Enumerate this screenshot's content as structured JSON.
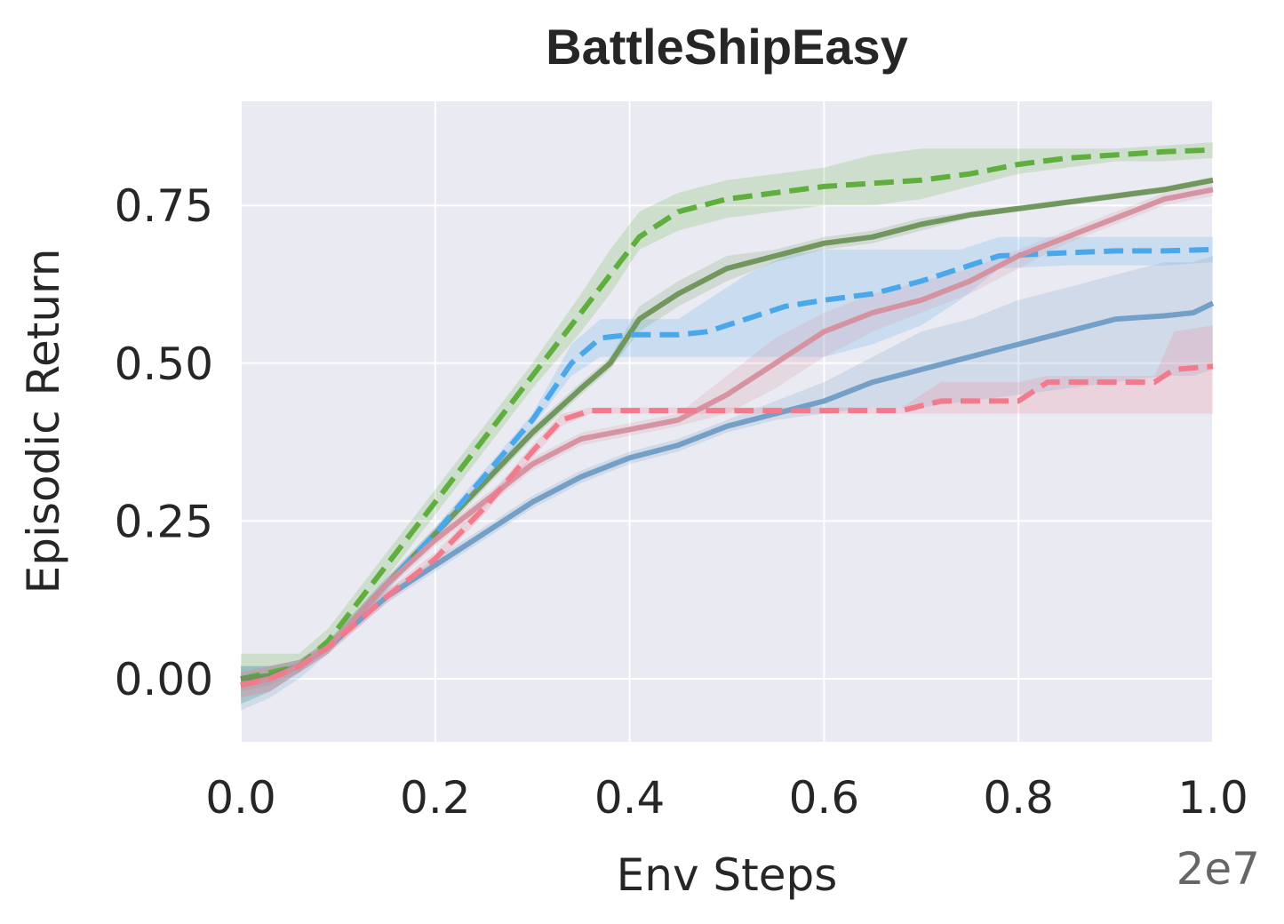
{
  "chart_data": {
    "type": "line",
    "title": "BattleShipEasy",
    "xlabel": "Env Steps",
    "ylabel": "Episodic Return",
    "x_offset_text": "2e7",
    "xlim": [
      0.0,
      1.0
    ],
    "ylim": [
      -0.1,
      0.915
    ],
    "x_ticks": [
      0.0,
      0.2,
      0.4,
      0.6,
      0.8,
      1.0
    ],
    "x_tick_labels": [
      "0.0",
      "0.2",
      "0.4",
      "0.6",
      "0.8",
      "1.0"
    ],
    "y_ticks": [
      0.0,
      0.25,
      0.5,
      0.75
    ],
    "y_tick_labels": [
      "0.00",
      "0.25",
      "0.50",
      "0.75"
    ],
    "grid": true,
    "background": "#eaeaf2",
    "series": [
      {
        "color": "#5fae3e",
        "dashed": true,
        "x": [
          0,
          0.03,
          0.06,
          0.09,
          0.12,
          0.15,
          0.2,
          0.25,
          0.3,
          0.35,
          0.38,
          0.41,
          0.45,
          0.5,
          0.55,
          0.6,
          0.65,
          0.7,
          0.75,
          0.8,
          0.85,
          0.9,
          0.95,
          1.0
        ],
        "y": [
          0.0,
          0.01,
          0.02,
          0.06,
          0.12,
          0.18,
          0.28,
          0.38,
          0.48,
          0.58,
          0.64,
          0.7,
          0.74,
          0.76,
          0.77,
          0.78,
          0.785,
          0.79,
          0.8,
          0.815,
          0.825,
          0.83,
          0.835,
          0.838
        ],
        "lo": [
          -0.04,
          -0.02,
          0.01,
          0.05,
          0.1,
          0.16,
          0.26,
          0.36,
          0.46,
          0.55,
          0.61,
          0.68,
          0.71,
          0.73,
          0.74,
          0.75,
          0.75,
          0.76,
          0.78,
          0.8,
          0.81,
          0.82,
          0.82,
          0.825
        ],
        "hi": [
          0.04,
          0.04,
          0.04,
          0.08,
          0.14,
          0.2,
          0.3,
          0.4,
          0.5,
          0.61,
          0.68,
          0.74,
          0.77,
          0.79,
          0.8,
          0.81,
          0.83,
          0.84,
          0.84,
          0.84,
          0.84,
          0.84,
          0.845,
          0.85
        ]
      },
      {
        "color": "#6b9459",
        "dashed": false,
        "x": [
          0,
          0.03,
          0.06,
          0.09,
          0.12,
          0.15,
          0.2,
          0.25,
          0.3,
          0.35,
          0.38,
          0.41,
          0.45,
          0.5,
          0.55,
          0.6,
          0.65,
          0.7,
          0.75,
          0.8,
          0.85,
          0.9,
          0.95,
          1.0
        ],
        "y": [
          0.0,
          0.005,
          0.02,
          0.05,
          0.1,
          0.15,
          0.23,
          0.31,
          0.39,
          0.46,
          0.5,
          0.57,
          0.61,
          0.65,
          0.67,
          0.69,
          0.7,
          0.72,
          0.735,
          0.745,
          0.755,
          0.765,
          0.775,
          0.79
        ],
        "lo": [
          -0.02,
          -0.01,
          0.01,
          0.04,
          0.09,
          0.14,
          0.22,
          0.3,
          0.38,
          0.45,
          0.49,
          0.55,
          0.59,
          0.63,
          0.66,
          0.68,
          0.69,
          0.71,
          0.73,
          0.74,
          0.75,
          0.76,
          0.77,
          0.785
        ],
        "hi": [
          0.02,
          0.02,
          0.03,
          0.06,
          0.11,
          0.16,
          0.24,
          0.32,
          0.4,
          0.47,
          0.51,
          0.59,
          0.63,
          0.67,
          0.68,
          0.7,
          0.71,
          0.73,
          0.74,
          0.75,
          0.76,
          0.77,
          0.78,
          0.795
        ]
      },
      {
        "color": "#4aa8ea",
        "dashed": true,
        "x": [
          0,
          0.03,
          0.06,
          0.09,
          0.12,
          0.15,
          0.2,
          0.25,
          0.3,
          0.34,
          0.37,
          0.4,
          0.45,
          0.48,
          0.52,
          0.56,
          0.6,
          0.65,
          0.7,
          0.74,
          0.78,
          0.85,
          0.9,
          0.95,
          1.0
        ],
        "y": [
          -0.01,
          0.0,
          0.02,
          0.05,
          0.1,
          0.15,
          0.23,
          0.32,
          0.41,
          0.5,
          0.54,
          0.545,
          0.545,
          0.55,
          0.57,
          0.59,
          0.6,
          0.61,
          0.63,
          0.65,
          0.67,
          0.675,
          0.678,
          0.678,
          0.68
        ],
        "lo": [
          -0.04,
          -0.02,
          0.01,
          0.04,
          0.09,
          0.14,
          0.22,
          0.31,
          0.4,
          0.48,
          0.51,
          0.51,
          0.51,
          0.51,
          0.51,
          0.51,
          0.51,
          0.53,
          0.56,
          0.6,
          0.65,
          0.655,
          0.655,
          0.655,
          0.66
        ],
        "hi": [
          0.02,
          0.02,
          0.03,
          0.06,
          0.11,
          0.16,
          0.24,
          0.33,
          0.42,
          0.53,
          0.57,
          0.57,
          0.57,
          0.6,
          0.64,
          0.67,
          0.68,
          0.68,
          0.68,
          0.68,
          0.7,
          0.7,
          0.7,
          0.7,
          0.7
        ]
      },
      {
        "color": "#6f9cc4",
        "dashed": false,
        "x": [
          0,
          0.03,
          0.06,
          0.09,
          0.12,
          0.15,
          0.2,
          0.25,
          0.3,
          0.35,
          0.4,
          0.45,
          0.5,
          0.55,
          0.6,
          0.65,
          0.7,
          0.75,
          0.8,
          0.85,
          0.9,
          0.95,
          0.98,
          1.0
        ],
        "y": [
          -0.01,
          0.0,
          0.02,
          0.05,
          0.09,
          0.13,
          0.18,
          0.23,
          0.28,
          0.32,
          0.35,
          0.37,
          0.4,
          0.42,
          0.44,
          0.47,
          0.49,
          0.51,
          0.53,
          0.55,
          0.57,
          0.575,
          0.58,
          0.595
        ],
        "lo": [
          -0.05,
          -0.03,
          0.0,
          0.04,
          0.08,
          0.12,
          0.17,
          0.22,
          0.27,
          0.31,
          0.34,
          0.36,
          0.39,
          0.41,
          0.42,
          0.43,
          0.43,
          0.44,
          0.45,
          0.46,
          0.47,
          0.48,
          0.48,
          0.49
        ],
        "hi": [
          0.02,
          0.02,
          0.03,
          0.06,
          0.1,
          0.14,
          0.19,
          0.24,
          0.29,
          0.33,
          0.36,
          0.38,
          0.41,
          0.44,
          0.47,
          0.51,
          0.55,
          0.57,
          0.6,
          0.62,
          0.64,
          0.66,
          0.66,
          0.67
        ]
      },
      {
        "color": "#d58f9e",
        "dashed": false,
        "x": [
          0,
          0.03,
          0.06,
          0.09,
          0.12,
          0.15,
          0.2,
          0.25,
          0.3,
          0.35,
          0.4,
          0.45,
          0.5,
          0.55,
          0.6,
          0.65,
          0.7,
          0.75,
          0.8,
          0.85,
          0.9,
          0.95,
          1.0
        ],
        "y": [
          -0.01,
          0.0,
          0.02,
          0.05,
          0.1,
          0.15,
          0.22,
          0.28,
          0.34,
          0.38,
          0.395,
          0.41,
          0.45,
          0.5,
          0.55,
          0.58,
          0.6,
          0.63,
          0.67,
          0.7,
          0.73,
          0.76,
          0.775
        ],
        "lo": [
          -0.03,
          -0.02,
          0.01,
          0.04,
          0.09,
          0.14,
          0.21,
          0.27,
          0.33,
          0.37,
          0.385,
          0.4,
          0.42,
          0.46,
          0.51,
          0.55,
          0.58,
          0.61,
          0.65,
          0.69,
          0.72,
          0.75,
          0.765
        ],
        "hi": [
          0.01,
          0.02,
          0.03,
          0.06,
          0.11,
          0.16,
          0.23,
          0.29,
          0.35,
          0.39,
          0.405,
          0.42,
          0.48,
          0.54,
          0.58,
          0.61,
          0.63,
          0.65,
          0.68,
          0.71,
          0.74,
          0.77,
          0.785
        ]
      },
      {
        "color": "#f27a8d",
        "dashed": true,
        "x": [
          0,
          0.03,
          0.06,
          0.09,
          0.12,
          0.15,
          0.2,
          0.25,
          0.3,
          0.33,
          0.36,
          0.4,
          0.5,
          0.6,
          0.68,
          0.72,
          0.8,
          0.83,
          0.9,
          0.94,
          0.96,
          1.0
        ],
        "y": [
          -0.01,
          0.0,
          0.02,
          0.05,
          0.09,
          0.13,
          0.19,
          0.27,
          0.36,
          0.41,
          0.425,
          0.425,
          0.425,
          0.425,
          0.425,
          0.44,
          0.44,
          0.47,
          0.47,
          0.47,
          0.49,
          0.495
        ],
        "lo": [
          -0.03,
          -0.02,
          0.01,
          0.04,
          0.08,
          0.12,
          0.18,
          0.26,
          0.35,
          0.4,
          0.42,
          0.42,
          0.42,
          0.42,
          0.42,
          0.42,
          0.42,
          0.42,
          0.42,
          0.42,
          0.42,
          0.42
        ],
        "hi": [
          0.01,
          0.02,
          0.03,
          0.06,
          0.1,
          0.14,
          0.2,
          0.28,
          0.37,
          0.42,
          0.43,
          0.43,
          0.43,
          0.43,
          0.43,
          0.47,
          0.47,
          0.48,
          0.48,
          0.48,
          0.55,
          0.56
        ]
      }
    ]
  }
}
